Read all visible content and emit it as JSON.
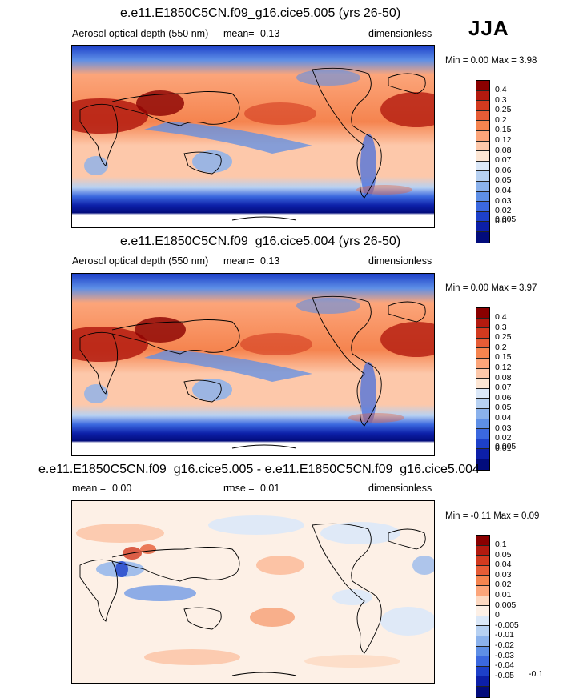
{
  "season": "JJA",
  "panels": [
    {
      "title": "e.e11.E1850C5CN.f09_g16.cice5.005 (yrs 26-50)",
      "variable": "Aerosol optical depth (550 nm)",
      "mean_label": "mean=",
      "mean_value": "0.13",
      "units": "dimensionless",
      "minmax": "Min =   0.00 Max =    3.98",
      "colorbar_labels": [
        "0.4",
        "0.3",
        "0.25",
        "0.2",
        "0.15",
        "0.12",
        "0.08",
        "0.07",
        "0.06",
        "0.05",
        "0.04",
        "0.03",
        "0.02",
        "0.01",
        "0.005"
      ]
    },
    {
      "title": "e.e11.E1850C5CN.f09_g16.cice5.004 (yrs 26-50)",
      "variable": "Aerosol optical depth (550 nm)",
      "mean_label": "mean=",
      "mean_value": "0.13",
      "units": "dimensionless",
      "minmax": "Min =   0.00 Max =    3.97",
      "colorbar_labels": [
        "0.4",
        "0.3",
        "0.25",
        "0.2",
        "0.15",
        "0.12",
        "0.08",
        "0.07",
        "0.06",
        "0.05",
        "0.04",
        "0.03",
        "0.02",
        "0.01",
        "0.005"
      ]
    },
    {
      "title": "e.e11.E1850C5CN.f09_g16.cice5.005 - e.e11.E1850C5CN.f09_g16.cice5.004",
      "mean_label": "mean =",
      "mean_value": "0.00",
      "rmse_label": "rmse =",
      "rmse_value": "0.01",
      "units": "dimensionless",
      "minmax": "Min =  -0.11 Max =   0.09",
      "colorbar_labels": [
        "0.1",
        "0.05",
        "0.04",
        "0.03",
        "0.02",
        "0.01",
        "0.005",
        "0",
        "-0.005",
        "-0.01",
        "-0.02",
        "-0.03",
        "-0.04",
        "-0.05",
        "-0.1"
      ]
    }
  ],
  "colors": {
    "abs_scale": [
      "#8a0000",
      "#b31a0f",
      "#d23a1f",
      "#e65c36",
      "#f5844f",
      "#fca57a",
      "#fdc8aa",
      "#fde6d4",
      "#dbe8f8",
      "#b7d1f2",
      "#8bb2ec",
      "#5e8fe6",
      "#3b68df",
      "#1d40c9",
      "#0c1fa8",
      "#020c7c"
    ],
    "diff_scale": [
      "#8a0000",
      "#b31a0f",
      "#d23a1f",
      "#e65c36",
      "#f5844f",
      "#fca57a",
      "#fdd9c2",
      "#fdf0e6",
      "#dbe8f8",
      "#b7d1f2",
      "#8bb2ec",
      "#5e8fe6",
      "#3b68df",
      "#1d40c9",
      "#0c1fa8",
      "#020c7c"
    ]
  }
}
